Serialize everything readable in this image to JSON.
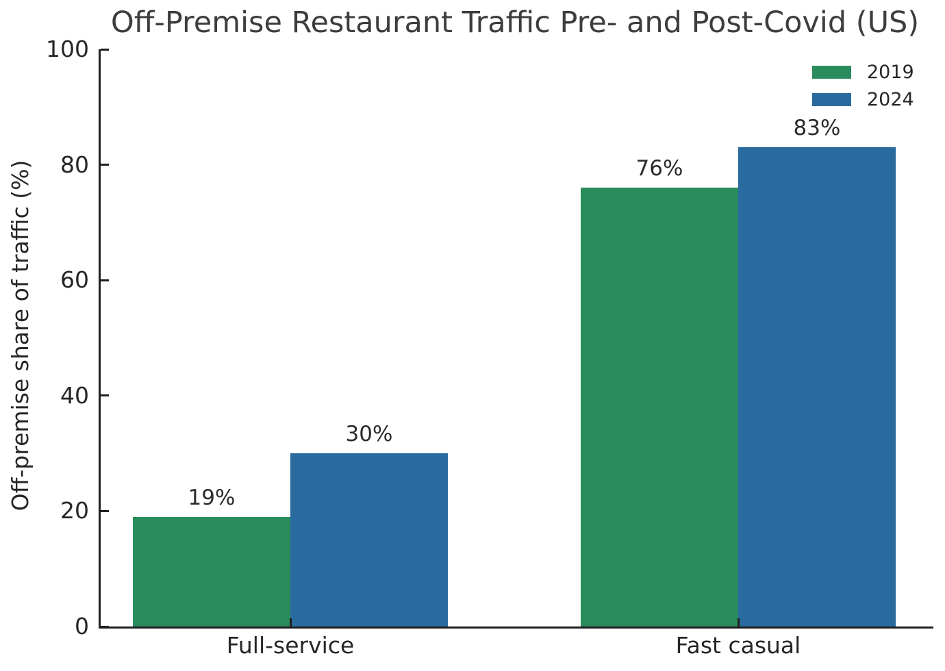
{
  "title": "Off-Premise Restaurant Traffic Pre- and Post-Covid (US)",
  "colors": {
    "series_2019": "#2a8c5c",
    "series_2024": "#2a6b9f",
    "axis": "#1f1f1f",
    "title_text": "#3d3d3d",
    "tick_text": "#262626"
  },
  "chart_data": {
    "type": "bar",
    "title": "Off-Premise Restaurant Traffic Pre- and Post-Covid (US)",
    "xlabel": "",
    "ylabel": "Off-premise share of traffic (%)",
    "categories": [
      "Full-service",
      "Fast casual"
    ],
    "series": [
      {
        "name": "2019",
        "color": "#2a8c5c",
        "values": [
          19,
          76
        ],
        "value_labels": [
          "19%",
          "76%"
        ]
      },
      {
        "name": "2024",
        "color": "#2a6b9f",
        "values": [
          30,
          83
        ],
        "value_labels": [
          "30%",
          "83%"
        ]
      }
    ],
    "ylim": [
      0,
      100
    ],
    "yticks": [
      0,
      20,
      40,
      60,
      80,
      100
    ],
    "grid": false,
    "legend_position": "upper right",
    "spines": [
      "left",
      "bottom"
    ],
    "tick_direction": "in"
  }
}
